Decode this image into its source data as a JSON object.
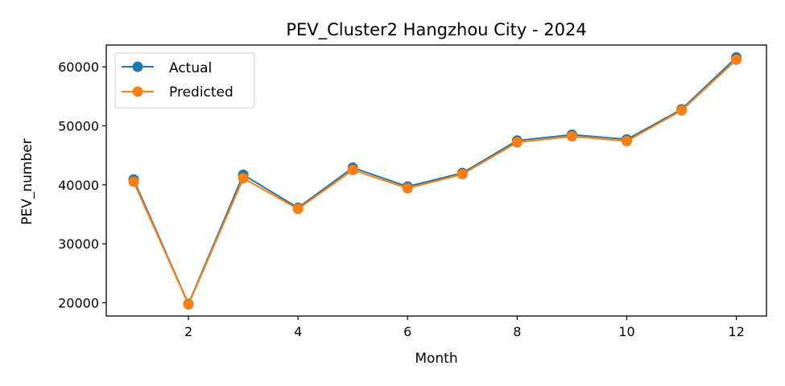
{
  "chart_data": {
    "type": "line",
    "title": "PEV_Cluster2 Hangzhou City - 2024",
    "xlabel": "Month",
    "ylabel": "PEV_number",
    "x": [
      1,
      2,
      3,
      4,
      5,
      6,
      7,
      8,
      9,
      10,
      11,
      12
    ],
    "xlim": [
      0.5,
      12.55
    ],
    "ylim": [
      17750,
      63700
    ],
    "xticks": [
      2,
      4,
      6,
      8,
      10,
      12
    ],
    "yticks": [
      20000,
      30000,
      40000,
      50000,
      60000
    ],
    "grid": false,
    "legend_position": "top-left",
    "series": [
      {
        "name": "Actual",
        "color": "#1f77b4",
        "marker": "circle",
        "values": [
          40900,
          19800,
          41700,
          36100,
          42900,
          39700,
          42000,
          47500,
          48500,
          47700,
          52800,
          61600
        ]
      },
      {
        "name": "Predicted",
        "color": "#ff7f0e",
        "marker": "circle",
        "values": [
          40500,
          19700,
          41100,
          35900,
          42500,
          39400,
          41800,
          47200,
          48200,
          47400,
          52600,
          61200
        ]
      }
    ]
  }
}
